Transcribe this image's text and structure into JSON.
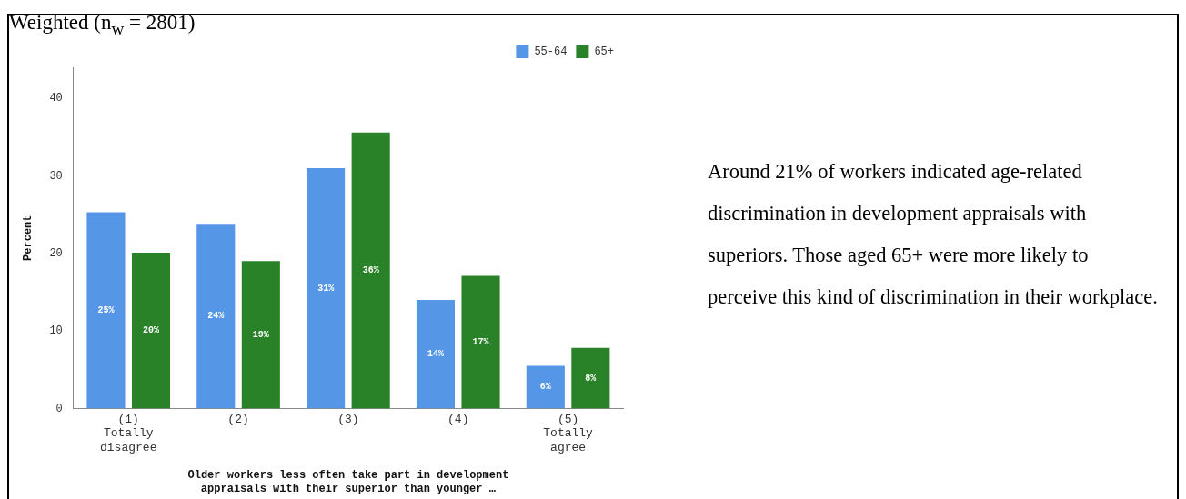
{
  "chart_data": {
    "type": "bar",
    "title": "Weighted (n$_{w}$ = 2801)",
    "categories": [
      "(1)\nTotally\ndisagree",
      "(2)",
      "(3)",
      "(4)",
      "(5)\nTotally\nagree"
    ],
    "series": [
      {
        "name": "55-64",
        "color": "#5596e6",
        "values": [
          25.3,
          23.8,
          31.0,
          14.0,
          5.5
        ],
        "value_labels": [
          "25%",
          "24%",
          "31%",
          "14%",
          "6%"
        ]
      },
      {
        "name": "65+",
        "color": "#2a8228",
        "values": [
          20.1,
          19.0,
          35.6,
          17.1,
          7.8
        ],
        "value_labels": [
          "20%",
          "19%",
          "36%",
          "17%",
          "8%"
        ]
      }
    ],
    "xlabel": "Older workers less often take part in development appraisals with their superior than younger …",
    "ylabel": "Percent",
    "ylim": [
      0,
      44
    ],
    "yticks": [
      0,
      10,
      20,
      30,
      40
    ],
    "grid": false,
    "legend": "top right",
    "annotations": [
      "Around 21% of workers indicated age-related discrimination in development appraisals with superiors. Those aged 65+ were more likely to perceive this kind of discrimination in their workplace."
    ]
  }
}
